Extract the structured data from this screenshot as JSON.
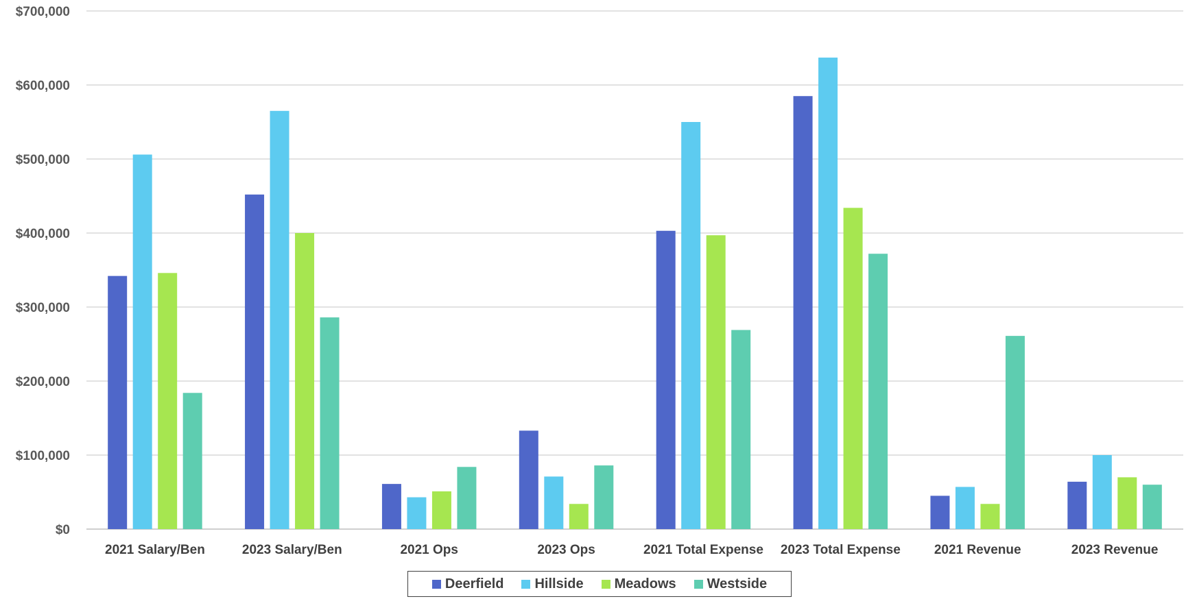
{
  "chart_data": {
    "type": "bar",
    "categories": [
      "2021 Salary/Ben",
      "2023 Salary/Ben",
      "2021 Ops",
      "2023 Ops",
      "2021 Total Expense",
      "2023 Total Expense",
      "2021 Revenue",
      "2023 Revenue"
    ],
    "series": [
      {
        "name": "Deerfield",
        "color": "#4F67C9",
        "values": [
          342000,
          452000,
          61000,
          133000,
          403000,
          585000,
          45000,
          64000
        ]
      },
      {
        "name": "Hillside",
        "color": "#5DCBF0",
        "values": [
          506000,
          565000,
          43000,
          71000,
          550000,
          637000,
          57000,
          100000
        ]
      },
      {
        "name": "Meadows",
        "color": "#A6E650",
        "values": [
          346000,
          400000,
          51000,
          34000,
          397000,
          434000,
          34000,
          70000
        ]
      },
      {
        "name": "Westside",
        "color": "#5ECDB0",
        "values": [
          184000,
          286000,
          84000,
          86000,
          269000,
          372000,
          261000,
          60000
        ]
      }
    ],
    "yticks": [
      "$0",
      "$100,000",
      "$200,000",
      "$300,000",
      "$400,000",
      "$500,000",
      "$600,000",
      "$700,000"
    ],
    "ylim": [
      0,
      700000
    ],
    "grid": true,
    "legend_position": "bottom",
    "title": "",
    "xlabel": "",
    "ylabel": ""
  }
}
